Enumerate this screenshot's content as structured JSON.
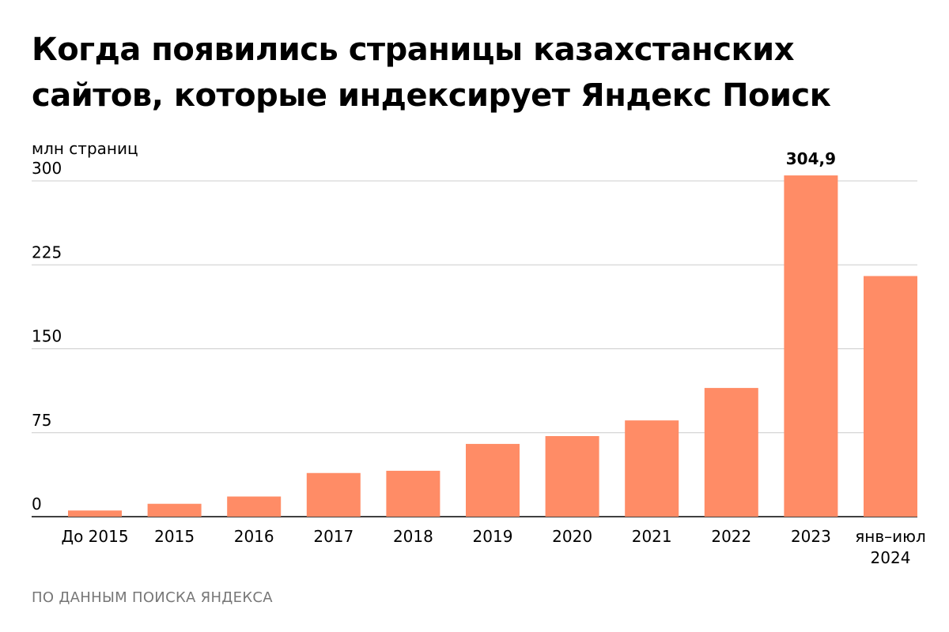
{
  "title_line1": "Когда появились страницы казахстанских",
  "title_line2": "сайтов, которые индексирует Яндекс Поиск",
  "source": "ПО ДАННЫМ ПОИСКА ЯНДЕКСА",
  "colors": {
    "bar": "#ff8c66",
    "grid": "#cccccc",
    "axis": "#000000"
  },
  "chart_data": {
    "type": "bar",
    "ylabel": "млн страниц",
    "ylim": [
      0,
      300
    ],
    "yticks": [
      0,
      75,
      150,
      225,
      300
    ],
    "grid": true,
    "categories": [
      [
        "До 2015"
      ],
      [
        "2015"
      ],
      [
        "2016"
      ],
      [
        "2017"
      ],
      [
        "2018"
      ],
      [
        "2019"
      ],
      [
        "2020"
      ],
      [
        "2021"
      ],
      [
        "2022"
      ],
      [
        "2023"
      ],
      [
        "янв–июл",
        "2024"
      ]
    ],
    "values": [
      5.5,
      11.5,
      18,
      39,
      41,
      65,
      72,
      86,
      115,
      304.9,
      215
    ],
    "data_labels": [
      "",
      "",
      "",
      "",
      "",
      "",
      "",
      "",
      "",
      "304,9",
      ""
    ]
  }
}
